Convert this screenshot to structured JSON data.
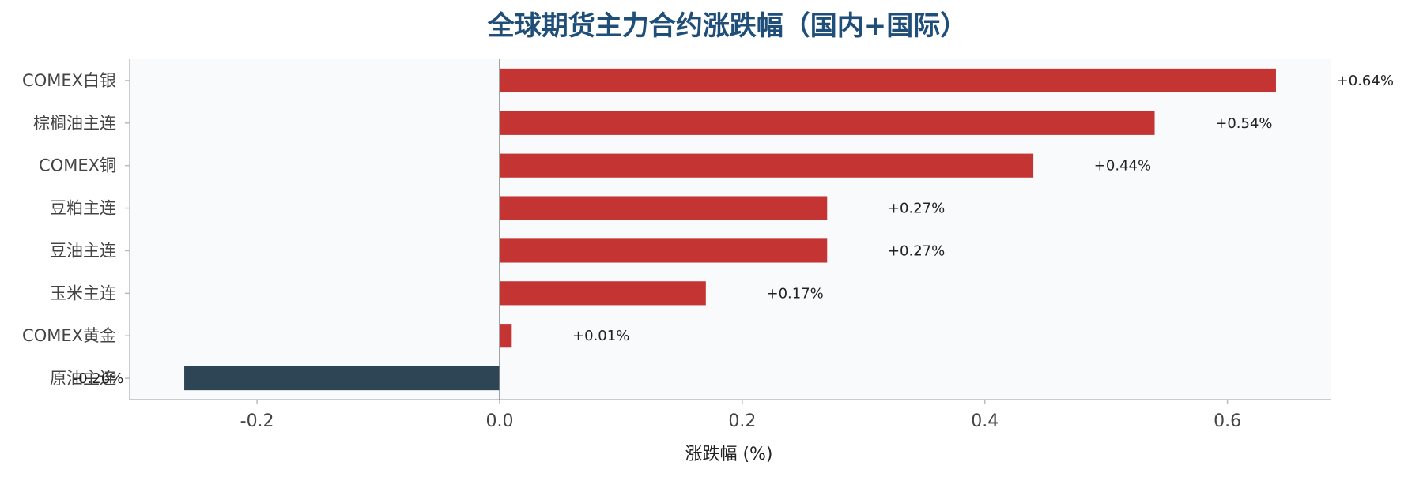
{
  "chart_data": {
    "type": "bar",
    "orientation": "horizontal",
    "title": "全球期货主力合约涨跌幅（国内+国际）",
    "xlabel": "涨跌幅 (%)",
    "ylabel": "",
    "categories": [
      "COMEX白银",
      "棕榈油主连",
      "COMEX铜",
      "豆粕主连",
      "豆油主连",
      "玉米主连",
      "COMEX黄金",
      "原油主连"
    ],
    "values": [
      0.64,
      0.54,
      0.44,
      0.27,
      0.27,
      0.17,
      0.01,
      -0.26
    ],
    "value_labels": [
      "+0.64%",
      "+0.54%",
      "+0.44%",
      "+0.27%",
      "+0.27%",
      "+0.17%",
      "+0.01%",
      "-0.26%"
    ],
    "xlim": [
      -0.305,
      0.685
    ],
    "xticks": [
      -0.2,
      0.0,
      0.2,
      0.4,
      0.6
    ],
    "xtick_labels": [
      "-0.2",
      "0.0",
      "0.2",
      "0.4",
      "0.6"
    ],
    "grid": false,
    "legend": "none",
    "colors": {
      "positive": "#c33432",
      "negative": "#2e4555",
      "plot_background": "#f8fafc",
      "zero_line": "#888888",
      "axis": "#bbbbbb",
      "title": "#1f4e79"
    }
  }
}
